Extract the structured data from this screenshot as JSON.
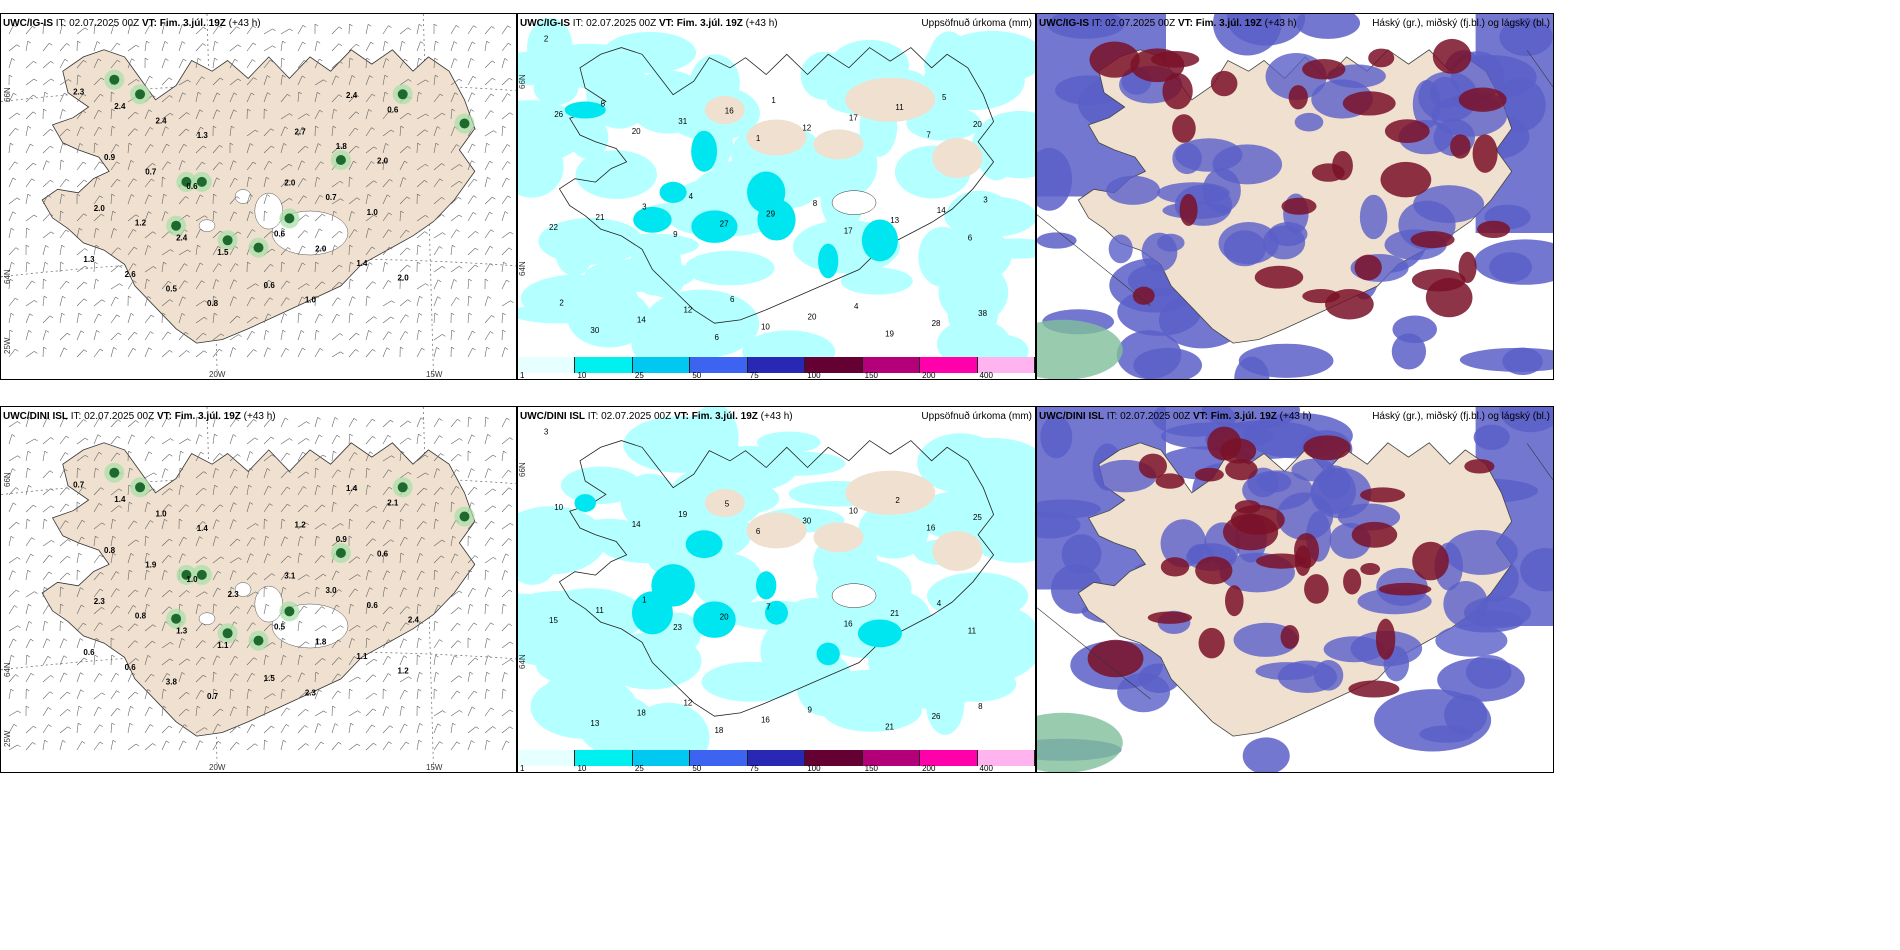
{
  "panels": [
    {
      "model": "UWC/IG-IS",
      "it_label": "IT:",
      "it": "02.07.2025 00Z",
      "vt_label": "VT:",
      "vt": "Fim. 3.júl. 19Z",
      "lead": "(+43 h)",
      "title": ""
    },
    {
      "model": "UWC/IG-IS",
      "it_label": "IT:",
      "it": "02.07.2025 00Z",
      "vt_label": "VT:",
      "vt": "Fim. 3.júl. 19Z",
      "lead": "(+43 h)",
      "title": "Uppsöfnuð úrkoma (mm)"
    },
    {
      "model": "UWC/IG-IS",
      "it_label": "IT:",
      "it": "02.07.2025 00Z",
      "vt_label": "VT:",
      "vt": "Fim. 3.júl. 19Z",
      "lead": "(+43 h)",
      "title": "Háský (gr.), miðský (fj.bl.) og lágský (bl.)"
    },
    {
      "model": "UWC/DINI ISL",
      "it_label": "IT:",
      "it": "02.07.2025 00Z",
      "vt_label": "VT:",
      "vt": "Fim. 3.júl. 19Z",
      "lead": "(+43 h)",
      "title": ""
    },
    {
      "model": "UWC/DINI ISL",
      "it_label": "IT:",
      "it": "02.07.2025 00Z",
      "vt_label": "VT:",
      "vt": "Fim. 3.júl. 19Z",
      "lead": "(+43 h)",
      "title": "Uppsöfnuð úrkoma (mm)"
    },
    {
      "model": "UWC/DINI ISL",
      "it_label": "IT:",
      "it": "02.07.2025 00Z",
      "vt_label": "VT:",
      "vt": "Fim. 3.júl. 19Z",
      "lead": "(+43 h)",
      "title": "Háský (gr.), miðský (fj.bl.) og lágský (bl.)"
    }
  ],
  "axes": {
    "lon_a": "20W",
    "lon_b": "15W",
    "lon_c": "25W",
    "lat_a": "66N",
    "lat_b": "64N"
  },
  "precip_colorbar": {
    "labels": [
      "1",
      "10",
      "25",
      "50",
      "75",
      "100",
      "150",
      "200",
      "400"
    ],
    "colors": [
      "#e6ffff",
      "#00f0f0",
      "#00c8f0",
      "#3c64f0",
      "#2828b4",
      "#640032",
      "#b40078",
      "#ff00aa",
      "#ffb4f0"
    ]
  },
  "labels": {
    "p0": [
      "2.3",
      "0.6",
      "1.3",
      "0.6",
      "2.0",
      "2.0",
      "0.9",
      "2.7",
      "2.4",
      "1.0",
      "2.6",
      "2.0",
      "1.2",
      "0.7",
      "0.7",
      "1.8",
      "2.4",
      "2.4",
      "0.5",
      "1.4",
      "2.4",
      "1.0",
      "0.6",
      "2.0",
      "1.3",
      "0.6",
      "0.8",
      "2.0",
      "1.5"
    ],
    "p1": [
      "2",
      "1",
      "6",
      "6",
      "7",
      "9",
      "19",
      "20",
      "17",
      "30",
      "12",
      "22",
      "10",
      "20",
      "27",
      "28",
      "31",
      "13",
      "14",
      "17",
      "21",
      "20",
      "26",
      "29",
      "38",
      "16",
      "14",
      "12",
      "11",
      "3",
      "4",
      "5",
      "8",
      "2",
      "1",
      "3",
      "6",
      "5",
      "4"
    ],
    "p3": [
      "0.7",
      "1.5",
      "0.6",
      "0.5",
      "2.3",
      "3.1",
      "0.8",
      "1.2",
      "1.4",
      "2.3",
      "0.6",
      "1.8",
      "0.8",
      "3.0",
      "1.9",
      "0.9",
      "1.0",
      "1.4",
      "3.8",
      "1.1",
      "1.3",
      "0.6",
      "1.0",
      "0.6",
      "1.4",
      "2.1",
      "0.7",
      "1.2",
      "1.1",
      "2.4",
      "2.3"
    ],
    "p4": [
      "3",
      "6",
      "11",
      "18",
      "16",
      "23",
      "21",
      "14",
      "16",
      "13",
      "30",
      "15",
      "16",
      "25",
      "20",
      "26",
      "19",
      "21",
      "18",
      "10",
      "11",
      "9",
      "10",
      "7",
      "8",
      "5",
      "4",
      "12",
      "2",
      "1"
    ]
  }
}
